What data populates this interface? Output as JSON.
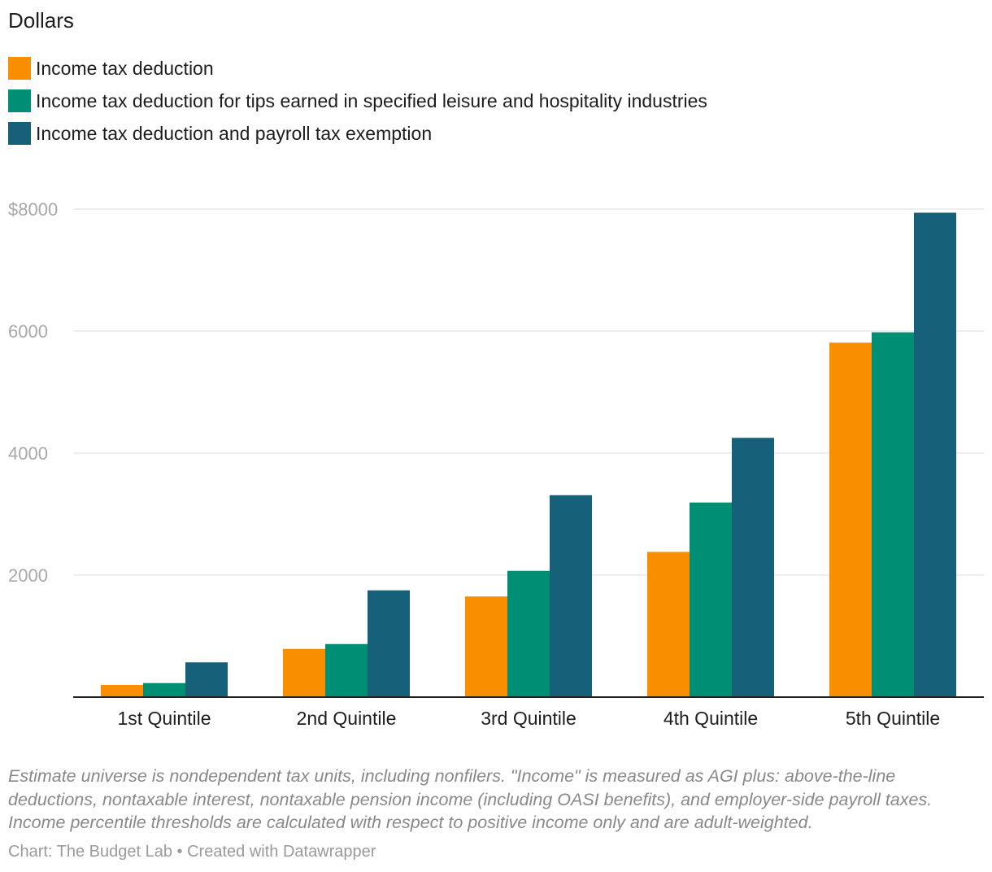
{
  "chart_data": {
    "type": "bar",
    "title": "",
    "subtitle": "Dollars",
    "categories": [
      "1st Quintile",
      "2nd Quintile",
      "3rd Quintile",
      "4th Quintile",
      "5th Quintile"
    ],
    "series": [
      {
        "name": "Income tax deduction",
        "color": "#f98e00",
        "values": [
          200,
          790,
          1650,
          2380,
          5810
        ]
      },
      {
        "name": "Income tax deduction for tips earned in specified leisure and hospitality industries",
        "color": "#008f74",
        "values": [
          230,
          870,
          2070,
          3190,
          5980
        ]
      },
      {
        "name": "Income tax deduction and payroll tax exemption",
        "color": "#16607a",
        "values": [
          570,
          1750,
          3310,
          4250,
          7940
        ]
      }
    ],
    "ylim": [
      0,
      8000
    ],
    "yticks": [
      "$8000",
      "6000",
      "4000",
      "2000"
    ],
    "ytick_values": [
      8000,
      6000,
      4000,
      2000
    ],
    "grid": true,
    "legend_position": "top-left"
  },
  "notes": "Estimate universe is nondependent tax units, including nonfilers. \"Income\" is measured as AGI plus: above-the-line deductions, nontaxable interest, nontaxable pension income (including OASI benefits), and employer-side payroll taxes. Income percentile thresholds are calculated with respect to positive income only and are adult-weighted.",
  "credit": "Chart: The Budget Lab • Created with Datawrapper"
}
